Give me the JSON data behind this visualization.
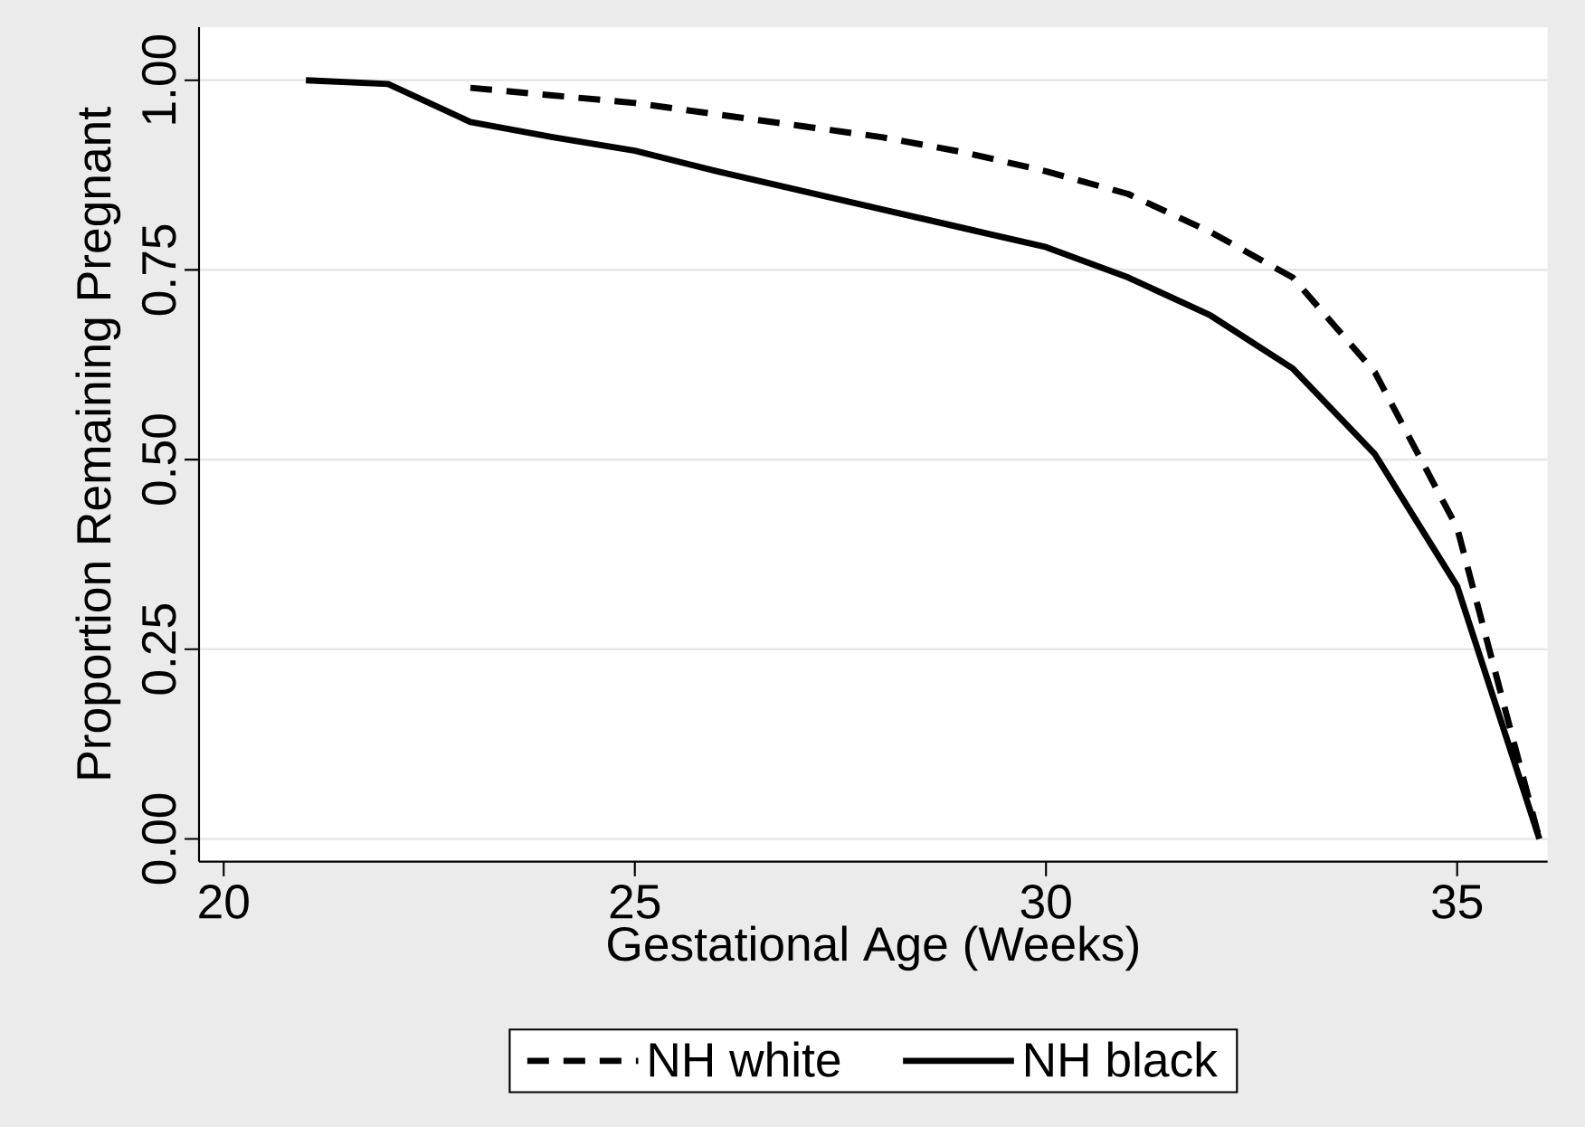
{
  "chart_data": {
    "type": "line",
    "xlabel": "Gestational Age (Weeks)",
    "ylabel": "Proportion Remaining Pregnant",
    "series": [
      {
        "name": "NH white",
        "color": "#000000",
        "line_style": "dashed",
        "x": [
          23,
          24,
          25,
          26,
          27,
          28,
          29,
          30,
          31,
          32,
          33,
          34,
          35,
          36
        ],
        "values": [
          0.99,
          0.98,
          0.97,
          0.955,
          0.94,
          0.925,
          0.905,
          0.88,
          0.85,
          0.8,
          0.74,
          0.615,
          0.41,
          0
        ]
      },
      {
        "name": "NH black",
        "color": "#000000",
        "line_style": "solid",
        "x": [
          21,
          22,
          23,
          24,
          25,
          26,
          27,
          28,
          29,
          30,
          31,
          32,
          33,
          34,
          35,
          36
        ],
        "values": [
          1.0,
          0.995,
          0.945,
          0.925,
          0.907,
          0.88,
          0.855,
          0.83,
          0.805,
          0.78,
          0.74,
          0.69,
          0.62,
          0.507,
          0.333,
          0
        ]
      }
    ],
    "xlim": [
      19.7,
      36.1
    ],
    "ylim": [
      -0.03,
      1.07
    ],
    "xticks": [
      20,
      25,
      30,
      35
    ],
    "yticks": [
      {
        "value": 0,
        "label": "0.00"
      },
      {
        "value": 0.25,
        "label": "0.25"
      },
      {
        "value": 0.5,
        "label": "0.50"
      },
      {
        "value": 0.75,
        "label": "0.75"
      },
      {
        "value": 1,
        "label": "1.00"
      }
    ],
    "grid": "y",
    "legend": "bottom"
  }
}
